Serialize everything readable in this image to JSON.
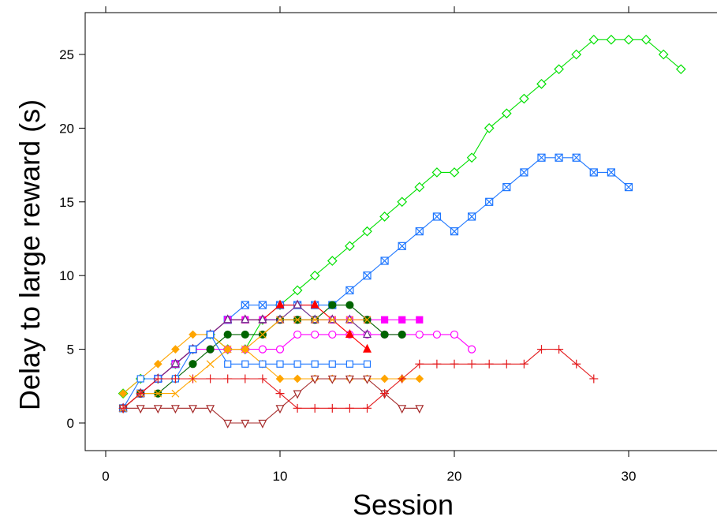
{
  "chart_data": {
    "type": "line",
    "title": "",
    "xlabel": "Session",
    "ylabel": "Delay to large reward (s)",
    "xlim": [
      -1,
      35
    ],
    "ylim": [
      -1.8,
      27.5
    ],
    "xticks": [
      0,
      10,
      20,
      30
    ],
    "yticks": [
      0,
      5,
      10,
      15,
      20,
      25
    ],
    "grid": false,
    "legend": "none",
    "series": [
      {
        "color": "#00e000",
        "marker": "diamond",
        "x": [
          1,
          2,
          3,
          4,
          5,
          6,
          7,
          8,
          9,
          10,
          11,
          12,
          13,
          14,
          15,
          16,
          17,
          18,
          19,
          20,
          21,
          22,
          23,
          24,
          25,
          26,
          27,
          28,
          29,
          30,
          31,
          32,
          33
        ],
        "values": [
          2,
          3,
          3,
          4,
          5,
          6,
          5,
          5,
          7,
          8,
          9,
          10,
          11,
          12,
          13,
          14,
          15,
          16,
          17,
          17,
          18,
          20,
          21,
          22,
          23,
          24,
          25,
          26,
          26,
          26,
          26,
          25,
          24
        ]
      },
      {
        "color": "#1f77ff",
        "marker": "square-x",
        "x": [
          1,
          2,
          3,
          4,
          5,
          6,
          7,
          8,
          9,
          10,
          11,
          12,
          13,
          14,
          15,
          16,
          17,
          18,
          19,
          20,
          21,
          22,
          23,
          24,
          25,
          26,
          27,
          28,
          29,
          30
        ],
        "values": [
          1,
          2,
          3,
          4,
          5,
          6,
          7,
          8,
          8,
          8,
          8,
          8,
          8,
          9,
          10,
          11,
          12,
          13,
          14,
          13,
          14,
          15,
          16,
          17,
          18,
          18,
          18,
          17,
          17,
          16
        ]
      },
      {
        "color": "#ff00ff",
        "marker": "square-filled",
        "x": [
          1,
          2,
          3,
          4,
          5,
          6,
          7,
          8,
          9,
          10,
          11,
          12,
          13,
          14,
          15,
          16,
          17,
          18
        ],
        "values": [
          1,
          2,
          3,
          4,
          5,
          6,
          7,
          7,
          7,
          7,
          7,
          7,
          7,
          7,
          7,
          7,
          7,
          7
        ]
      },
      {
        "color": "#ff00ff",
        "marker": "circle-open",
        "x": [
          1,
          2,
          3,
          4,
          5,
          6,
          7,
          8,
          9,
          10,
          11,
          12,
          13,
          14,
          15,
          16,
          17,
          18,
          19,
          20,
          21
        ],
        "values": [
          1,
          2,
          3,
          4,
          5,
          5,
          5,
          5,
          5,
          5,
          6,
          6,
          6,
          6,
          6,
          6,
          6,
          6,
          6,
          6,
          5
        ]
      },
      {
        "color": "#006400",
        "marker": "circle-filled",
        "x": [
          1,
          2,
          3,
          4,
          5,
          6,
          7,
          8,
          9,
          10,
          11,
          12,
          13,
          14,
          15,
          16,
          17
        ],
        "values": [
          1,
          2,
          2,
          3,
          4,
          5,
          6,
          6,
          6,
          7,
          7,
          7,
          8,
          8,
          7,
          6,
          6
        ]
      },
      {
        "color": "#ff0000",
        "marker": "triangle-filled",
        "x": [
          1,
          2,
          3,
          4,
          5,
          6,
          7,
          8,
          9,
          10,
          11,
          12,
          13,
          14,
          15
        ],
        "values": [
          1,
          2,
          3,
          4,
          5,
          6,
          7,
          7,
          7,
          8,
          8,
          8,
          7,
          6,
          5
        ]
      },
      {
        "color": "#6b2a8c",
        "marker": "triangle-open",
        "x": [
          1,
          2,
          3,
          4,
          5,
          6,
          7,
          8,
          9,
          10,
          11,
          12,
          13,
          14,
          15
        ],
        "values": [
          1,
          2,
          3,
          4,
          5,
          6,
          7,
          7,
          7,
          7,
          8,
          7,
          7,
          7,
          6
        ]
      },
      {
        "color": "#ffa500",
        "marker": "diamond-filled",
        "x": [
          1,
          2,
          3,
          4,
          5,
          6,
          7,
          8,
          9,
          10,
          11,
          12,
          13,
          14,
          15,
          16,
          17,
          18
        ],
        "values": [
          2,
          3,
          4,
          5,
          6,
          6,
          5,
          5,
          4,
          3,
          3,
          3,
          3,
          3,
          3,
          3,
          3,
          3
        ]
      },
      {
        "color": "#1f77ff",
        "marker": "square-open",
        "x": [
          1,
          2,
          3,
          4,
          5,
          6,
          7,
          8,
          9,
          10,
          11,
          12,
          13,
          14,
          15
        ],
        "values": [
          1,
          3,
          3,
          3,
          5,
          6,
          4,
          4,
          4,
          4,
          4,
          4,
          4,
          4,
          4
        ]
      },
      {
        "color": "#ffa500",
        "marker": "x",
        "x": [
          1,
          2,
          3,
          4,
          5,
          6,
          7,
          8,
          9,
          10,
          11,
          12,
          13,
          14,
          15
        ],
        "values": [
          1,
          2,
          2,
          2,
          3,
          4,
          5,
          5,
          6,
          7,
          7,
          7,
          7,
          7,
          7
        ]
      },
      {
        "color": "#a52a2a",
        "marker": "triangle-down-open",
        "x": [
          1,
          2,
          3,
          4,
          5,
          6,
          7,
          8,
          9,
          10,
          11,
          12,
          13,
          14,
          15,
          16,
          17,
          18
        ],
        "values": [
          1,
          1,
          1,
          1,
          1,
          1,
          0,
          0,
          0,
          1,
          2,
          3,
          3,
          3,
          3,
          2,
          1,
          1
        ]
      },
      {
        "color": "#e31a1c",
        "marker": "plus",
        "x": [
          1,
          2,
          3,
          4,
          5,
          6,
          7,
          8,
          9,
          10,
          11,
          12,
          13,
          14,
          15,
          16,
          17,
          18,
          19,
          20,
          21,
          22,
          23,
          24,
          25,
          26,
          27,
          28
        ],
        "values": [
          1,
          2,
          3,
          3,
          3,
          3,
          3,
          3,
          3,
          2,
          1,
          1,
          1,
          1,
          1,
          2,
          3,
          4,
          4,
          4,
          4,
          4,
          4,
          4,
          5,
          5,
          4,
          3
        ]
      }
    ]
  }
}
